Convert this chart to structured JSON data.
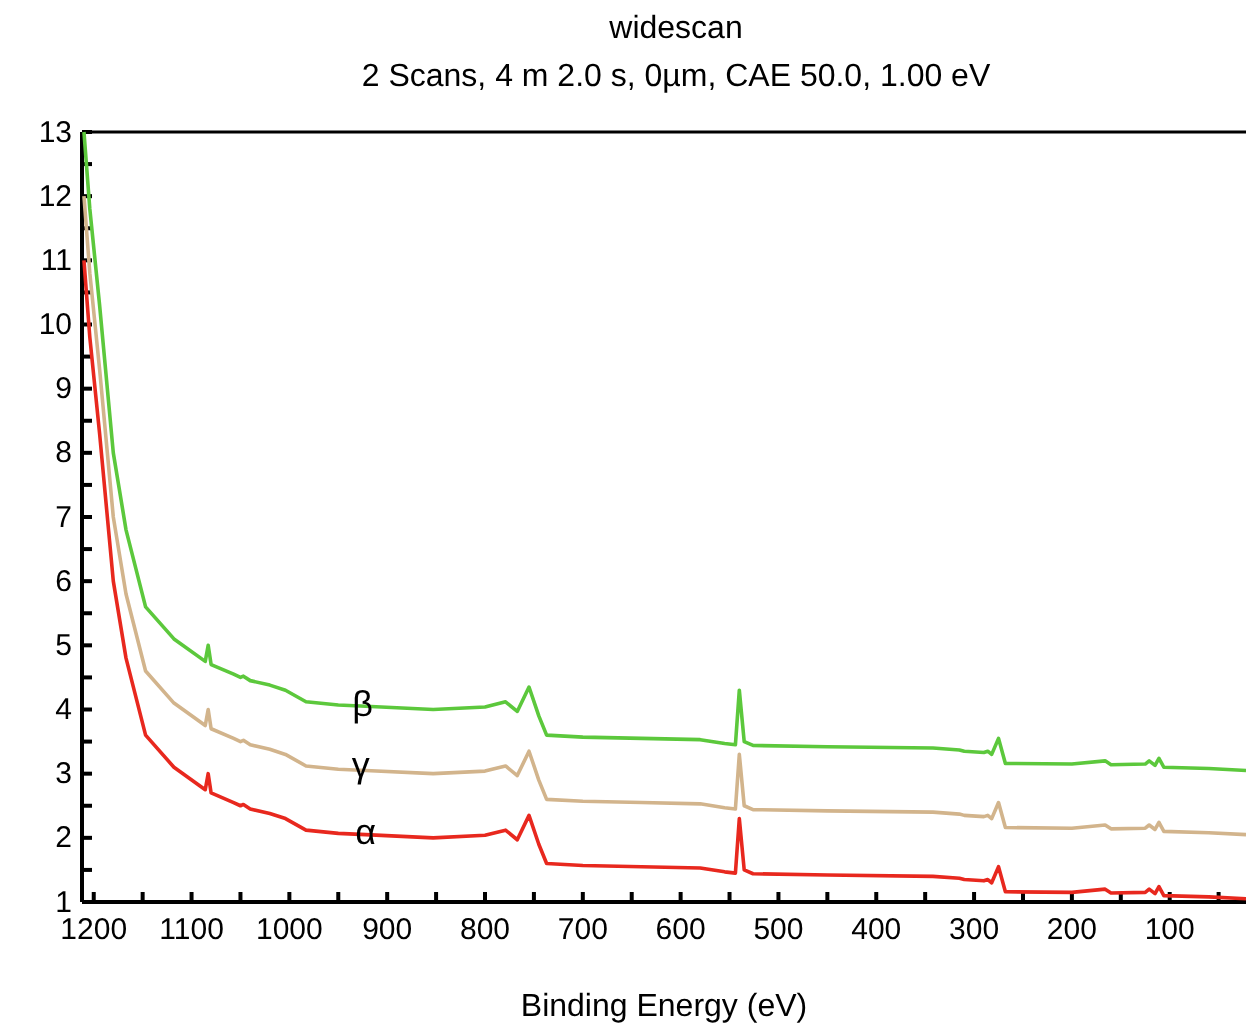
{
  "chart_data": {
    "type": "line",
    "title": "widescan",
    "subtitle": "2 Scans,  4 m 2.0 s,  0µm,  CAE 50.0,  1.00 eV",
    "xlabel": "Binding Energy (eV)",
    "x": [
      1210,
      1204,
      1194,
      1180,
      1167,
      1147,
      1118,
      1086,
      1083,
      1080,
      1057,
      1050,
      1047,
      1040,
      1020,
      1004,
      983,
      950,
      922,
      853,
      800,
      779,
      767,
      755,
      745,
      737,
      700,
      640,
      580,
      555,
      544,
      540,
      535,
      526,
      450,
      342,
      315,
      310,
      290,
      286,
      282,
      275,
      268,
      200,
      166,
      160,
      125,
      121,
      115,
      111,
      106,
      60,
      22
    ],
    "series": [
      {
        "color": "#5cc83c",
        "values": [
          13.0,
          11.8,
          10.3,
          8.0,
          6.8,
          5.6,
          5.1,
          4.75,
          5.0,
          4.7,
          4.55,
          4.5,
          4.52,
          4.45,
          4.38,
          4.3,
          4.12,
          4.07,
          4.05,
          4.0,
          4.04,
          4.12,
          3.97,
          4.35,
          3.9,
          3.6,
          3.57,
          3.55,
          3.53,
          3.47,
          3.45,
          4.3,
          3.5,
          3.44,
          3.42,
          3.4,
          3.37,
          3.35,
          3.33,
          3.35,
          3.3,
          3.55,
          3.16,
          3.15,
          3.2,
          3.14,
          3.15,
          3.2,
          3.13,
          3.24,
          3.1,
          3.08,
          3.05
        ]
      },
      {
        "color": "#d2b48c",
        "values": [
          12.0,
          10.8,
          9.3,
          7.0,
          5.8,
          4.6,
          4.1,
          3.75,
          4.0,
          3.7,
          3.55,
          3.5,
          3.52,
          3.45,
          3.38,
          3.3,
          3.12,
          3.07,
          3.05,
          3.0,
          3.04,
          3.12,
          2.97,
          3.35,
          2.9,
          2.6,
          2.57,
          2.55,
          2.53,
          2.47,
          2.45,
          3.3,
          2.5,
          2.44,
          2.42,
          2.4,
          2.37,
          2.35,
          2.33,
          2.35,
          2.3,
          2.55,
          2.16,
          2.15,
          2.2,
          2.14,
          2.15,
          2.2,
          2.13,
          2.24,
          2.1,
          2.08,
          2.05
        ]
      },
      {
        "color": "#e8281e",
        "values": [
          11.0,
          9.8,
          8.3,
          6.0,
          4.8,
          3.6,
          3.1,
          2.75,
          3.0,
          2.7,
          2.55,
          2.5,
          2.52,
          2.45,
          2.38,
          2.3,
          2.12,
          2.07,
          2.05,
          2.0,
          2.04,
          2.12,
          1.97,
          2.35,
          1.9,
          1.6,
          1.57,
          1.55,
          1.53,
          1.47,
          1.45,
          2.3,
          1.5,
          1.44,
          1.42,
          1.4,
          1.37,
          1.35,
          1.33,
          1.35,
          1.3,
          1.55,
          1.16,
          1.15,
          1.2,
          1.14,
          1.15,
          1.2,
          1.13,
          1.24,
          1.1,
          1.08,
          1.05
        ]
      }
    ],
    "xlim": [
      1212,
      22
    ],
    "xticks": [
      1200,
      {
        "value": 1150,
        "label": null
      },
      1100,
      {
        "value": 1050,
        "label": null
      },
      1000,
      {
        "value": 950,
        "label": null
      },
      900,
      {
        "value": 850,
        "label": null
      },
      800,
      {
        "value": 750,
        "label": null
      },
      700,
      {
        "value": 650,
        "label": null
      },
      600,
      {
        "value": 550,
        "label": null
      },
      500,
      {
        "value": 450,
        "label": null
      },
      400,
      {
        "value": 350,
        "label": null
      },
      300,
      {
        "value": 250,
        "label": null
      },
      200,
      {
        "value": 150,
        "label": null
      },
      100,
      {
        "value": 50,
        "label": null
      }
    ],
    "ylim": [
      1,
      13
    ],
    "yticks": [
      1,
      {
        "value": 1.5,
        "label": null
      },
      2,
      {
        "value": 2.5,
        "label": null
      },
      3,
      {
        "value": 3.5,
        "label": null
      },
      4,
      {
        "value": 4.5,
        "label": null
      },
      5,
      {
        "value": 5.5,
        "label": null
      },
      6,
      {
        "value": 6.5,
        "label": null
      },
      7,
      {
        "value": 7.5,
        "label": null
      },
      8,
      {
        "value": 8.5,
        "label": null
      },
      9,
      {
        "value": 9.5,
        "label": null
      },
      10,
      {
        "value": 10.5,
        "label": null
      },
      11,
      {
        "value": 11.5,
        "label": null
      },
      12,
      {
        "value": 12.5,
        "label": null
      },
      13
    ],
    "annotations": [
      {
        "text": "β",
        "x": 925,
        "y": 4.1
      },
      {
        "text": "γ",
        "x": 927,
        "y": 3.15
      },
      {
        "text": "α",
        "x": 922,
        "y": 2.1
      }
    ],
    "grid": false,
    "line_style": "solid",
    "marker": "none"
  }
}
